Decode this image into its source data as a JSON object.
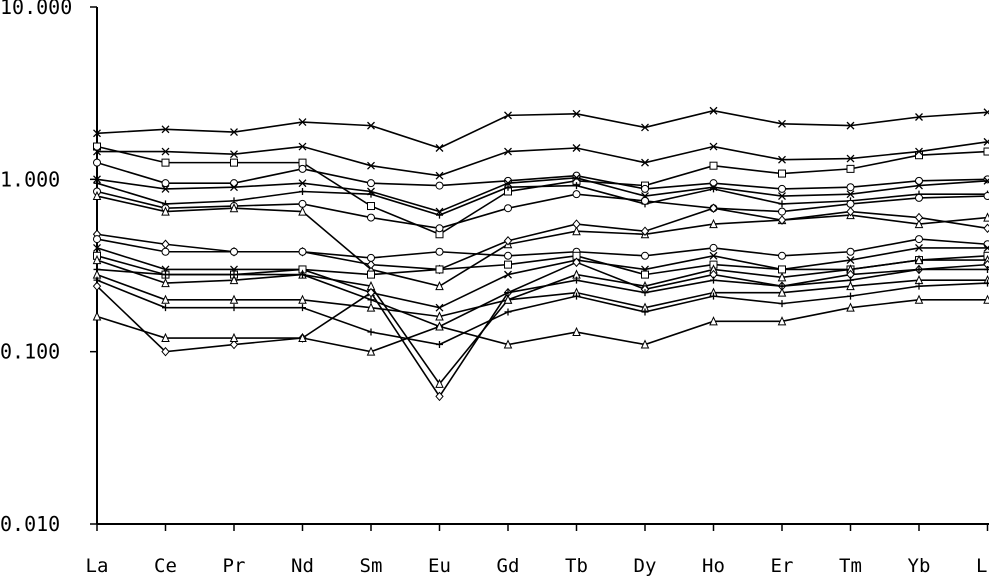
{
  "chart_data": {
    "type": "line",
    "yscale": "log",
    "ylim": [
      0.01,
      10
    ],
    "yticks": [
      "10.000",
      "1.000",
      "0.100",
      "0.010"
    ],
    "categories": [
      "La",
      "Ce",
      "Pr",
      "Nd",
      "Sm",
      "Eu",
      "Gd",
      "Tb",
      "Dy",
      "Ho",
      "Er",
      "Tm",
      "Yb",
      "Lu"
    ],
    "series": [
      {
        "marker": "x",
        "values": [
          1.85,
          1.95,
          1.88,
          2.15,
          2.05,
          1.52,
          2.35,
          2.4,
          2.0,
          2.5,
          2.1,
          2.05,
          2.3,
          2.45
        ]
      },
      {
        "marker": "square",
        "values": [
          1.55,
          1.25,
          1.25,
          1.25,
          0.7,
          0.48,
          0.85,
          0.98,
          0.92,
          1.2,
          1.08,
          1.15,
          1.38,
          1.45
        ]
      },
      {
        "marker": "x",
        "values": [
          1.45,
          1.45,
          1.4,
          1.55,
          1.2,
          1.05,
          1.45,
          1.52,
          1.25,
          1.55,
          1.3,
          1.32,
          1.45,
          1.65
        ]
      },
      {
        "marker": "circle",
        "values": [
          1.25,
          0.95,
          0.95,
          1.15,
          0.95,
          0.92,
          0.98,
          1.05,
          0.88,
          0.95,
          0.88,
          0.9,
          0.98,
          1.0
        ]
      },
      {
        "marker": "x",
        "values": [
          1.0,
          0.88,
          0.9,
          0.95,
          0.85,
          0.65,
          0.95,
          1.02,
          0.8,
          0.9,
          0.8,
          0.82,
          0.92,
          0.98
        ]
      },
      {
        "marker": "plus",
        "values": [
          0.95,
          0.72,
          0.75,
          0.85,
          0.82,
          0.62,
          0.9,
          0.92,
          0.72,
          0.88,
          0.72,
          0.75,
          0.82,
          0.82
        ]
      },
      {
        "marker": "circle",
        "values": [
          0.85,
          0.68,
          0.7,
          0.72,
          0.6,
          0.52,
          0.68,
          0.82,
          0.75,
          0.68,
          0.65,
          0.72,
          0.78,
          0.8
        ]
      },
      {
        "marker": "triangle",
        "values": [
          0.8,
          0.65,
          0.68,
          0.65,
          0.3,
          0.24,
          0.42,
          0.5,
          0.48,
          0.55,
          0.58,
          0.62,
          0.55,
          0.6
        ]
      },
      {
        "marker": "diamond",
        "values": [
          0.48,
          0.42,
          0.38,
          0.38,
          0.32,
          0.3,
          0.44,
          0.55,
          0.5,
          0.68,
          0.58,
          0.65,
          0.6,
          0.52
        ]
      },
      {
        "marker": "circle",
        "values": [
          0.45,
          0.38,
          0.38,
          0.38,
          0.35,
          0.38,
          0.36,
          0.38,
          0.36,
          0.4,
          0.36,
          0.38,
          0.45,
          0.42
        ]
      },
      {
        "marker": "x",
        "values": [
          0.4,
          0.3,
          0.3,
          0.3,
          0.22,
          0.18,
          0.28,
          0.34,
          0.3,
          0.36,
          0.3,
          0.34,
          0.4,
          0.4
        ]
      },
      {
        "marker": "square",
        "values": [
          0.36,
          0.28,
          0.28,
          0.3,
          0.28,
          0.3,
          0.32,
          0.36,
          0.28,
          0.32,
          0.3,
          0.3,
          0.34,
          0.36
        ]
      },
      {
        "marker": "triangle",
        "values": [
          0.34,
          0.25,
          0.26,
          0.28,
          0.24,
          0.065,
          0.2,
          0.28,
          0.24,
          0.3,
          0.27,
          0.3,
          0.34,
          0.34
        ]
      },
      {
        "marker": "diamond",
        "values": [
          0.24,
          0.1,
          0.11,
          0.12,
          0.22,
          0.055,
          0.22,
          0.33,
          0.23,
          0.28,
          0.24,
          0.28,
          0.3,
          0.32
        ]
      },
      {
        "marker": "plus",
        "values": [
          0.3,
          0.28,
          0.28,
          0.28,
          0.2,
          0.14,
          0.22,
          0.26,
          0.22,
          0.26,
          0.24,
          0.26,
          0.3,
          0.3
        ]
      },
      {
        "marker": "triangle",
        "values": [
          0.28,
          0.2,
          0.2,
          0.2,
          0.18,
          0.16,
          0.2,
          0.22,
          0.18,
          0.22,
          0.22,
          0.24,
          0.26,
          0.26
        ]
      },
      {
        "marker": "plus",
        "values": [
          0.26,
          0.18,
          0.18,
          0.18,
          0.13,
          0.11,
          0.17,
          0.21,
          0.17,
          0.21,
          0.19,
          0.21,
          0.24,
          0.25
        ]
      },
      {
        "marker": "triangle",
        "values": [
          0.16,
          0.12,
          0.12,
          0.12,
          0.1,
          0.14,
          0.11,
          0.13,
          0.11,
          0.15,
          0.15,
          0.18,
          0.2,
          0.2
        ]
      }
    ]
  }
}
